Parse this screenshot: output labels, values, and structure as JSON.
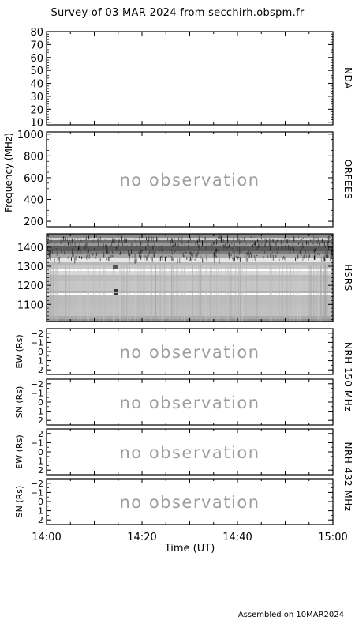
{
  "figure": {
    "title": "Survey of 03 MAR 2024 from secchirh.obspm.fr",
    "footer": "Assembled on 10MAR2024",
    "shared_xlabel": "Time (UT)",
    "shared_xticks": [
      "14:00",
      "14:20",
      "14:40",
      "15:00"
    ],
    "freq_axis_label": "Frequency (MHz)",
    "nrh150_label": "NRH 150 MHz",
    "nrh432_label": "NRH 432 MHz",
    "no_obs_text": "no observation"
  },
  "chart_data": [
    {
      "type": "heatmap",
      "panel": "NDA",
      "ylabel": "",
      "yticks": [
        10,
        20,
        30,
        40,
        50,
        60,
        70,
        80
      ],
      "ylim": [
        80,
        8
      ],
      "xlim": [
        "14:00",
        "15:00"
      ],
      "status": ""
    },
    {
      "type": "heatmap",
      "panel": "ORFEES",
      "ylabel": "",
      "yticks": [
        200,
        400,
        600,
        800,
        1000
      ],
      "ylim": [
        1020,
        150
      ],
      "xlim": [
        "14:00",
        "15:00"
      ],
      "status": "no observation"
    },
    {
      "type": "heatmap",
      "panel": "HSRS",
      "ylabel": "",
      "yticks": [
        1100,
        1200,
        1300,
        1400
      ],
      "ylim": [
        1470,
        1010
      ],
      "xlim": [
        "14:00",
        "15:00"
      ],
      "status": ""
    },
    {
      "type": "heatmap",
      "panel": "NRH 150 MHz EW",
      "ylabel": "EW (Rs)",
      "yticks": [
        -2,
        -1,
        0,
        1,
        2
      ],
      "ylim": [
        -2.5,
        2.5
      ],
      "xlim": [
        "14:00",
        "15:00"
      ],
      "status": "no observation"
    },
    {
      "type": "heatmap",
      "panel": "NRH 150 MHz SN",
      "ylabel": "SN (Rs)",
      "yticks": [
        -2,
        -1,
        0,
        1,
        2
      ],
      "ylim": [
        -2.5,
        2.5
      ],
      "xlim": [
        "14:00",
        "15:00"
      ],
      "status": "no observation"
    },
    {
      "type": "heatmap",
      "panel": "NRH 432 MHz EW",
      "ylabel": "EW (Rs)",
      "yticks": [
        -2,
        -1,
        0,
        1,
        2
      ],
      "ylim": [
        -2.5,
        2.5
      ],
      "xlim": [
        "14:00",
        "15:00"
      ],
      "status": "no observation"
    },
    {
      "type": "heatmap",
      "panel": "NRH 432 MHz SN",
      "ylabel": "SN (Rs)",
      "yticks": [
        -2,
        -1,
        0,
        1,
        2
      ],
      "ylim": [
        -2.5,
        2.5
      ],
      "xlim": [
        "14:00",
        "15:00"
      ],
      "status": "no observation"
    }
  ]
}
